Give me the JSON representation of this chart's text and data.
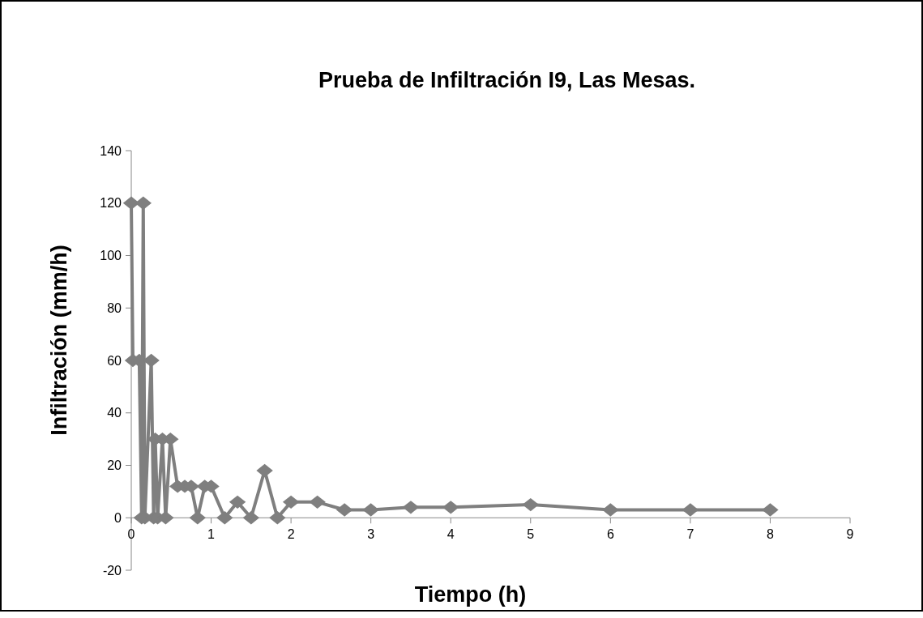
{
  "chart_data": {
    "type": "line",
    "title": "Prueba de Infiltración I9, Las Mesas.",
    "xlabel": "Tiempo (h)",
    "ylabel": "Infiltración (mm/h)",
    "xlim": [
      0,
      9
    ],
    "xticks": [
      0,
      1,
      2,
      3,
      4,
      5,
      6,
      7,
      8,
      9
    ],
    "ylim": [
      -20,
      140
    ],
    "yticks": [
      -20,
      0,
      20,
      40,
      60,
      80,
      100,
      120,
      140
    ],
    "grid": false,
    "marker": "diamond",
    "line_style": "solid",
    "series": [
      {
        "color": "#7f7f7f",
        "x": [
          0,
          0.02,
          0.1,
          0.13,
          0.15,
          0.17,
          0.25,
          0.28,
          0.3,
          0.33,
          0.39,
          0.43,
          0.49,
          0.58,
          0.67,
          0.75,
          0.83,
          0.92,
          1,
          1.17,
          1.33,
          1.5,
          1.67,
          1.83,
          2,
          2.33,
          2.67,
          3,
          3.5,
          4,
          5,
          6,
          7,
          8
        ],
        "values": [
          120,
          60,
          60,
          0,
          120,
          0,
          60,
          0,
          30,
          0,
          30,
          0,
          30,
          12,
          12,
          12,
          0,
          12,
          12,
          0,
          6,
          0,
          18,
          0,
          6,
          6,
          3,
          3,
          4,
          4,
          5,
          3,
          3,
          3
        ]
      }
    ]
  }
}
